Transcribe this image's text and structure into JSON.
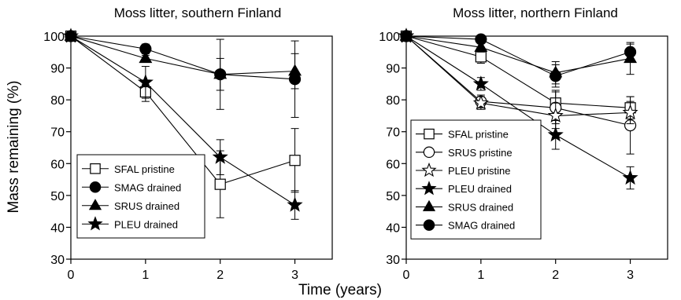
{
  "figure": {
    "ylabel": "Mass remaining (%)",
    "xlabel": "Time (years)"
  },
  "chart_data": [
    {
      "type": "line",
      "title": "Moss litter, southern Finland",
      "x": [
        0,
        1,
        2,
        3
      ],
      "xlim": [
        0,
        3.5
      ],
      "ylim": [
        30,
        100
      ],
      "xticks": [
        "0",
        "1",
        "2",
        "3"
      ],
      "yticks": [
        "30",
        "40",
        "50",
        "60",
        "70",
        "80",
        "90",
        "100"
      ],
      "legend_position": "bottom-left",
      "series": [
        {
          "name": "SFAL pristine",
          "marker": "square-open",
          "values": [
            100,
            82.5,
            53.5,
            61
          ],
          "errors": [
            0,
            3,
            10.5,
            10
          ]
        },
        {
          "name": "SMAG drained",
          "marker": "circle-filled",
          "values": [
            100,
            96,
            88,
            86.5
          ],
          "errors": [
            0,
            1.5,
            11,
            12
          ]
        },
        {
          "name": "SRUS drained",
          "marker": "triangle-filled",
          "values": [
            100,
            93,
            88,
            89
          ],
          "errors": [
            0,
            1,
            5,
            5.5
          ]
        },
        {
          "name": "PLEU drained",
          "marker": "star-filled",
          "values": [
            100,
            85.5,
            62,
            47
          ],
          "errors": [
            0,
            5,
            5.5,
            4.5
          ]
        }
      ]
    },
    {
      "type": "line",
      "title": "Moss litter, northern Finland",
      "x": [
        0,
        1,
        2,
        3
      ],
      "xlim": [
        0,
        3.5
      ],
      "ylim": [
        30,
        100
      ],
      "xticks": [
        "0",
        "1",
        "2",
        "3"
      ],
      "yticks": [
        "30",
        "40",
        "50",
        "60",
        "70",
        "80",
        "90",
        "100"
      ],
      "legend_position": "bottom-left",
      "series": [
        {
          "name": "SFAL pristine",
          "marker": "square-open",
          "values": [
            100,
            93.5,
            79,
            77.5
          ],
          "errors": [
            0,
            2,
            4,
            3.5
          ]
        },
        {
          "name": "SRUS pristine",
          "marker": "circle-open",
          "values": [
            100,
            79.5,
            77.5,
            72
          ],
          "errors": [
            0,
            2,
            5,
            9
          ]
        },
        {
          "name": "PLEU pristine",
          "marker": "star-open",
          "values": [
            100,
            79,
            75,
            76
          ],
          "errors": [
            0,
            2,
            4,
            3.5
          ]
        },
        {
          "name": "PLEU drained",
          "marker": "star-filled",
          "values": [
            100,
            85,
            69,
            55.5
          ],
          "errors": [
            0,
            2,
            4.5,
            3.5
          ]
        },
        {
          "name": "SRUS drained",
          "marker": "triangle-filled",
          "values": [
            100,
            96.5,
            88.5,
            93
          ],
          "errors": [
            0,
            1.5,
            3.5,
            5
          ]
        },
        {
          "name": "SMAG drained",
          "marker": "circle-filled",
          "values": [
            100,
            99,
            87.5,
            95
          ],
          "errors": [
            0,
            1,
            3.5,
            2.5
          ]
        }
      ]
    }
  ]
}
